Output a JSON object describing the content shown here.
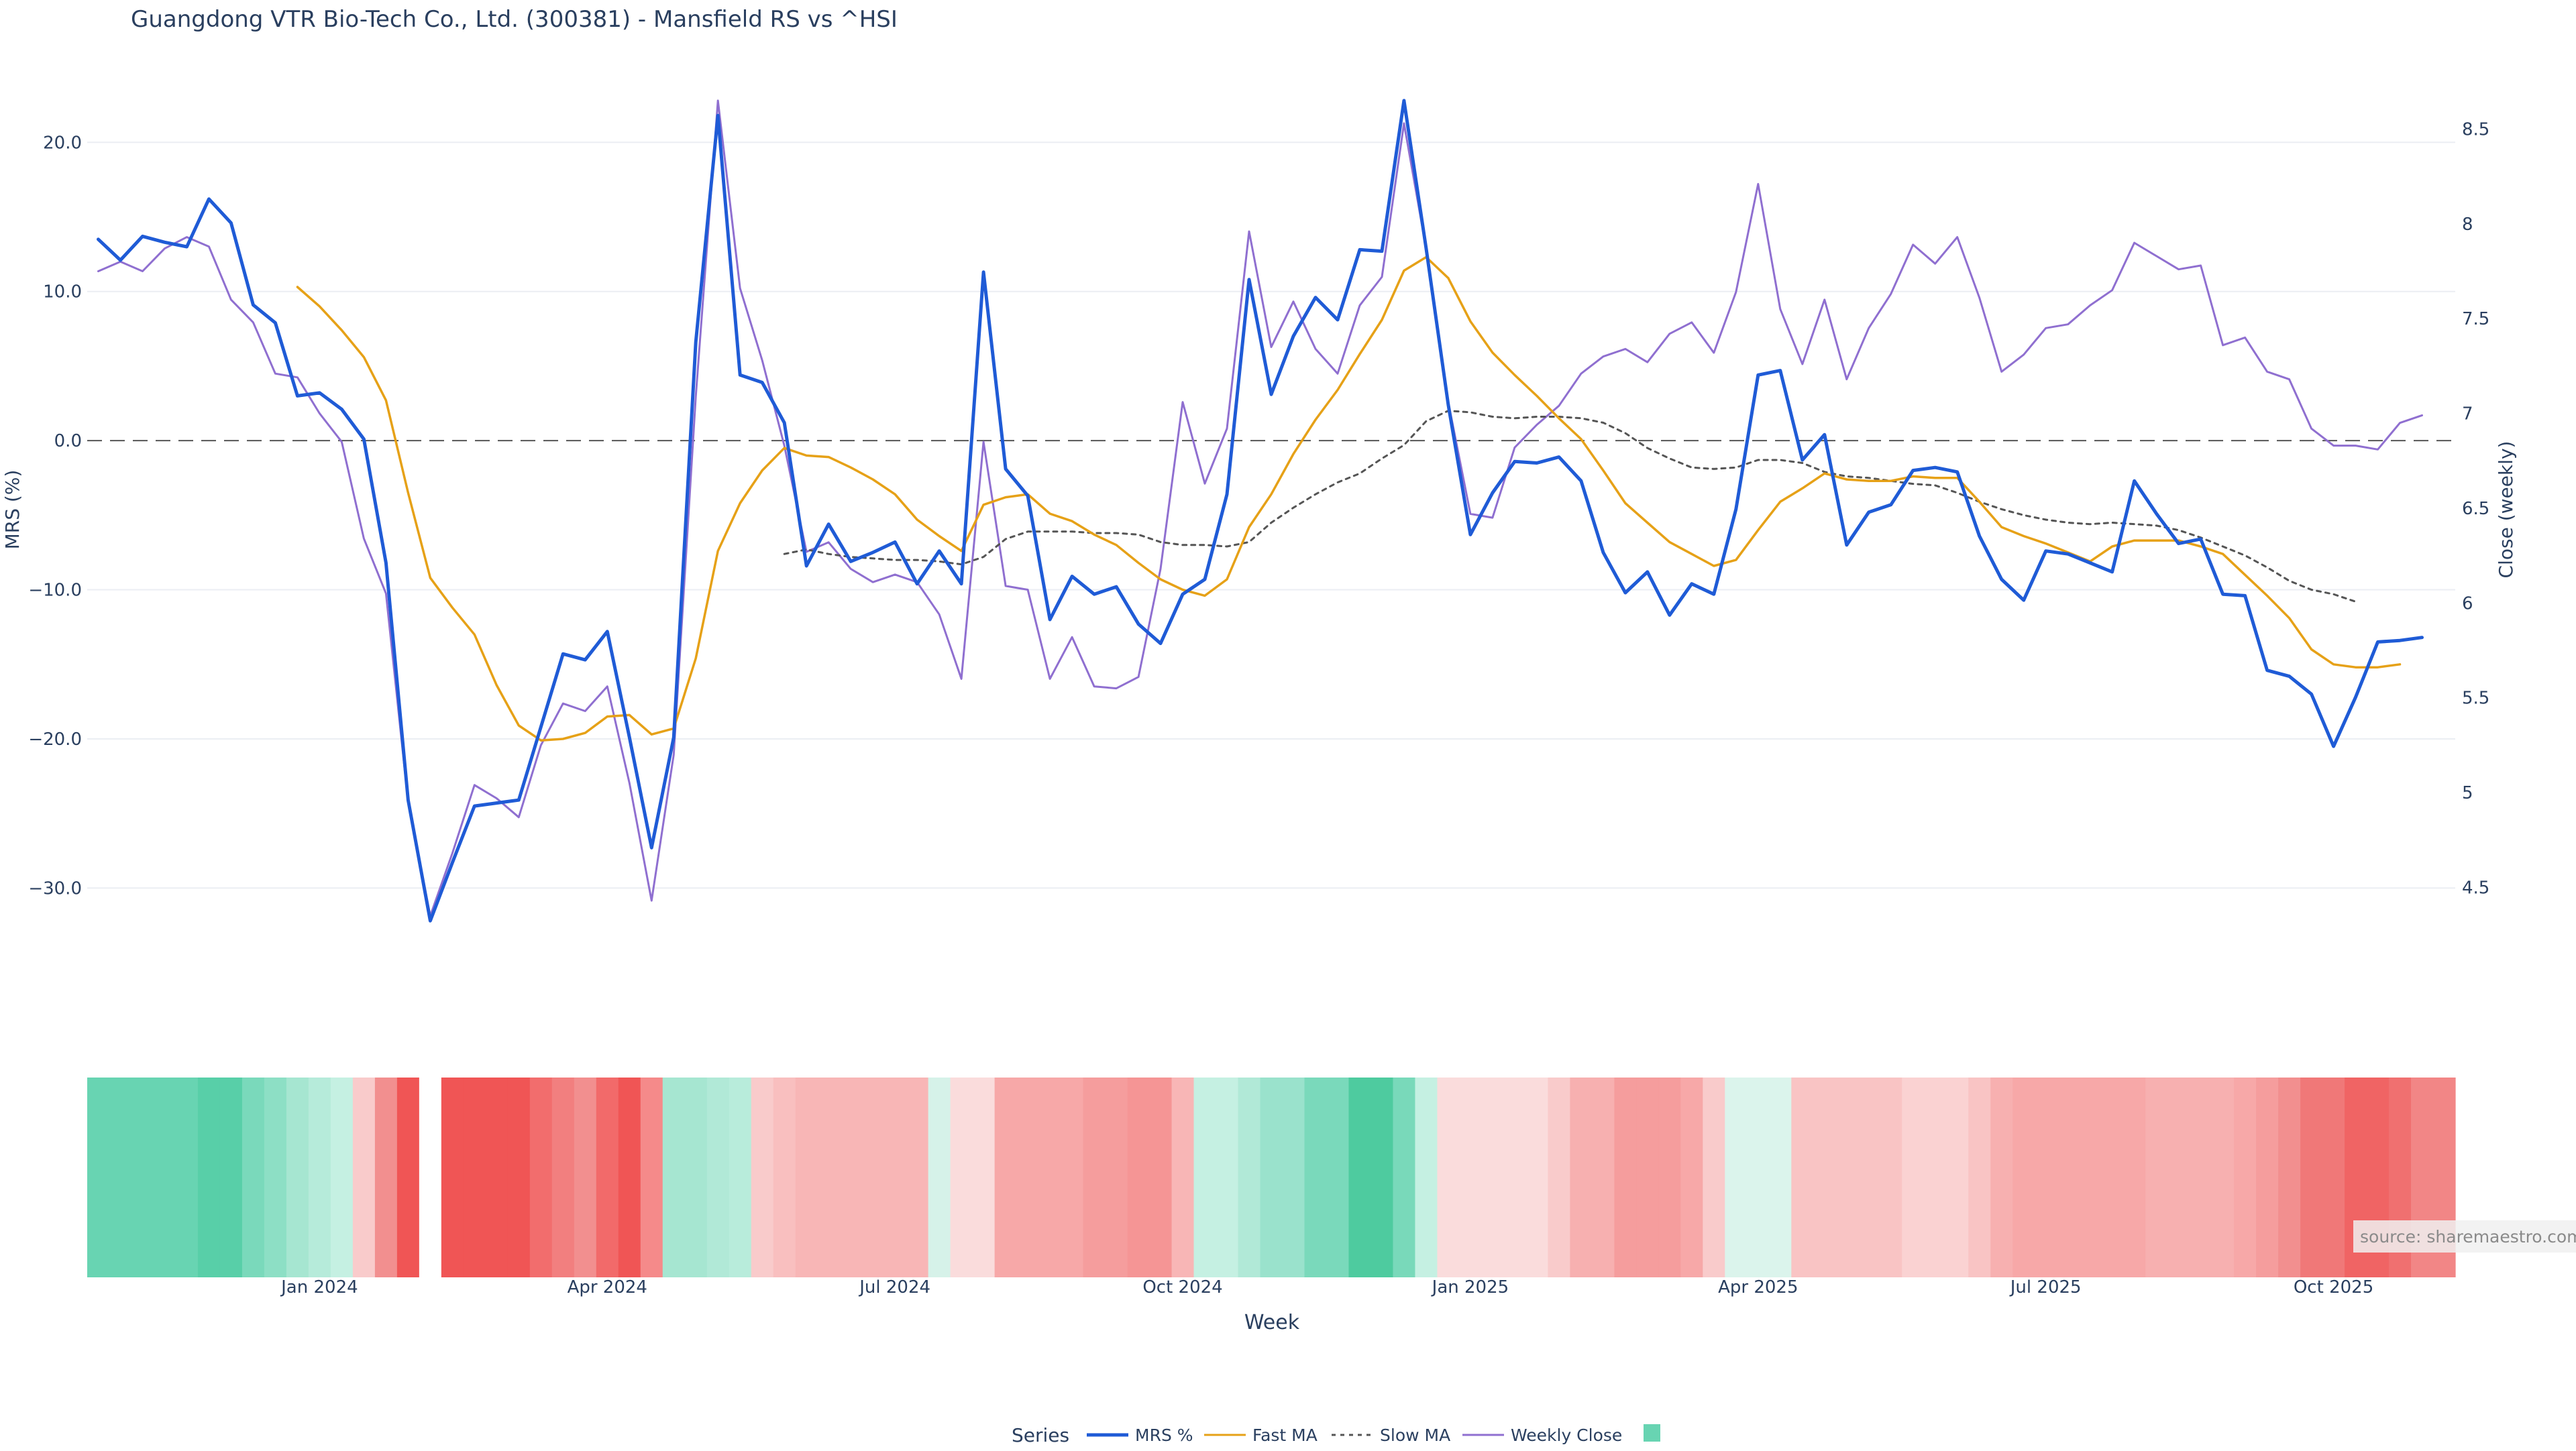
{
  "chart_data": {
    "type": "line",
    "title": "Guangdong VTR Bio-Tech Co., Ltd. (300381) - Mansfield RS vs ^HSI",
    "xlabel": "Week",
    "ylabel_left": "MRS (%)",
    "ylabel_right": "Close (weekly)",
    "ylim_left": [
      -32.5,
      22.8
    ],
    "ylim_right": [
      4.3,
      8.65
    ],
    "yticks_left": [
      20,
      10,
      0,
      -10,
      -20,
      -30
    ],
    "ytick_labels_left": [
      "20.0",
      "10.0",
      "0.0",
      "−10.0",
      "−20.0",
      "−30.0"
    ],
    "yticks_right": [
      8.5,
      8,
      7.5,
      7,
      6.5,
      6,
      5.5,
      5,
      4.5
    ],
    "ytick_labels_right": [
      "8.5",
      "8",
      "7.5",
      "7",
      "6.5",
      "6",
      "5.5",
      "5",
      "4.5"
    ],
    "x_ticks": [
      {
        "week": 10,
        "label": "Jan 2024"
      },
      {
        "week": 23,
        "label": "Apr 2024"
      },
      {
        "week": 36,
        "label": "Jul 2024"
      },
      {
        "week": 49,
        "label": "Oct 2024"
      },
      {
        "week": 62,
        "label": "Jan 2025"
      },
      {
        "week": 75,
        "label": "Apr 2025"
      },
      {
        "week": 88,
        "label": "Jul 2025"
      },
      {
        "week": 101,
        "label": "Oct 2025"
      }
    ],
    "n_weeks": 107,
    "zero_line": 0,
    "series": [
      {
        "name": "MRS %",
        "axis": "left",
        "color": "#1f5bd6",
        "dash": "solid",
        "start_week": 0,
        "values": [
          13.5,
          12.1,
          13.7,
          13.3,
          13.0,
          16.2,
          14.6,
          9.1,
          7.9,
          3.0,
          3.2,
          2.1,
          0.1,
          -8.2,
          -24.1,
          -32.2,
          -28.3,
          -24.5,
          -24.3,
          -24.1,
          -19.2,
          -14.3,
          -14.7,
          -12.8,
          -19.9,
          -27.3,
          -19.9,
          6.6,
          21.8,
          4.4,
          3.9,
          1.2,
          -8.4,
          -5.6,
          -8.1,
          -7.5,
          -6.8,
          -9.6,
          -7.4,
          -9.6,
          11.3,
          -1.9,
          -3.7,
          -12.0,
          -9.1,
          -10.3,
          -9.8,
          -12.3,
          -13.6,
          -10.3,
          -9.3,
          -3.6,
          10.8,
          3.1,
          7.0,
          9.6,
          8.1,
          12.8,
          12.7,
          22.8,
          12.9,
          2.4,
          -6.3,
          -3.5,
          -1.4,
          -1.5,
          -1.1,
          -2.7,
          -7.5,
          -10.2,
          -8.8,
          -11.7,
          -9.6,
          -10.3,
          -4.6,
          4.4,
          4.7,
          -1.3,
          0.4,
          -7.0,
          -4.8,
          -4.3,
          -2.0,
          -1.8,
          -2.1,
          -6.4,
          -9.3,
          -10.7,
          -7.4,
          -7.6,
          -8.2,
          -8.8,
          -2.7,
          -4.9,
          -6.9,
          -6.6,
          -10.3,
          -10.4,
          -15.4,
          -15.8,
          -17.0,
          -20.5,
          -17.2,
          -13.5,
          -13.4,
          -13.2
        ]
      },
      {
        "name": "Fast MA",
        "axis": "left",
        "color": "#e6a117",
        "dash": "solid",
        "start_week": 9,
        "values": [
          10.3,
          9.0,
          7.4,
          5.6,
          2.7,
          -3.5,
          -9.2,
          -11.2,
          -13.0,
          -16.4,
          -19.1,
          -20.1,
          -20.0,
          -19.6,
          -18.5,
          -18.4,
          -19.7,
          -19.3,
          -14.6,
          -7.4,
          -4.2,
          -2.0,
          -0.5,
          -1.0,
          -1.1,
          -1.8,
          -2.6,
          -3.6,
          -5.3,
          -6.4,
          -7.4,
          -4.3,
          -3.8,
          -3.6,
          -4.9,
          -5.4,
          -6.3,
          -7.0,
          -8.2,
          -9.3,
          -10.0,
          -10.4,
          -9.3,
          -5.8,
          -3.6,
          -0.9,
          1.4,
          3.4,
          5.8,
          8.1,
          11.4,
          12.3,
          10.9,
          8.0,
          5.9,
          4.4,
          3.0,
          1.5,
          0.1,
          -2.0,
          -4.2,
          -5.5,
          -6.8,
          -7.6,
          -8.4,
          -8.0,
          -6.0,
          -4.1,
          -3.2,
          -2.2,
          -2.6,
          -2.7,
          -2.7,
          -2.4,
          -2.5,
          -2.5,
          -4.1,
          -5.8,
          -6.4,
          -6.9,
          -7.5,
          -8.1,
          -7.1,
          -6.7,
          -6.7,
          -6.7,
          -7.1,
          -7.6,
          -9.0,
          -10.4,
          -11.9,
          -14.0,
          -15.0,
          -15.2,
          -15.2,
          -15.0
        ]
      },
      {
        "name": "Slow MA",
        "axis": "left",
        "color": "#555555",
        "dash": "dotted",
        "start_week": 31,
        "values": [
          -7.6,
          -7.3,
          -7.6,
          -7.8,
          -7.9,
          -8.0,
          -8.0,
          -8.1,
          -8.3,
          -7.8,
          -6.6,
          -6.1,
          -6.1,
          -6.1,
          -6.2,
          -6.2,
          -6.3,
          -6.8,
          -7.0,
          -7.0,
          -7.1,
          -6.8,
          -5.5,
          -4.5,
          -3.6,
          -2.8,
          -2.2,
          -1.2,
          -0.3,
          1.3,
          2.0,
          1.9,
          1.6,
          1.5,
          1.6,
          1.6,
          1.5,
          1.2,
          0.5,
          -0.5,
          -1.2,
          -1.8,
          -1.9,
          -1.8,
          -1.3,
          -1.3,
          -1.5,
          -2.1,
          -2.4,
          -2.5,
          -2.7,
          -2.9,
          -3.0,
          -3.5,
          -4.1,
          -4.6,
          -5.0,
          -5.3,
          -5.5,
          -5.6,
          -5.5,
          -5.6,
          -5.7,
          -6.0,
          -6.5,
          -7.1,
          -7.7,
          -8.5,
          -9.4,
          -10.0,
          -10.3,
          -10.8
        ]
      },
      {
        "name": "Weekly Close",
        "axis": "right",
        "color": "#8f6fd0",
        "dash": "solid",
        "start_week": 0,
        "values": [
          7.75,
          7.8,
          7.75,
          7.87,
          7.93,
          7.88,
          7.6,
          7.48,
          7.21,
          7.19,
          7.0,
          6.85,
          6.34,
          6.05,
          4.95,
          4.35,
          4.68,
          5.04,
          4.97,
          4.87,
          5.25,
          5.47,
          5.43,
          5.56,
          5.05,
          4.43,
          5.2,
          7.09,
          8.65,
          7.66,
          7.28,
          6.83,
          6.27,
          6.32,
          6.18,
          6.11,
          6.15,
          6.11,
          5.94,
          5.6,
          6.85,
          6.09,
          6.07,
          5.6,
          5.82,
          5.56,
          5.55,
          5.61,
          6.18,
          7.06,
          6.63,
          6.92,
          7.96,
          7.35,
          7.59,
          7.34,
          7.21,
          7.57,
          7.72,
          8.53,
          7.87,
          7.06,
          6.47,
          6.45,
          6.82,
          6.94,
          7.04,
          7.21,
          7.3,
          7.34,
          7.27,
          7.42,
          7.48,
          7.32,
          7.64,
          8.21,
          7.55,
          7.26,
          7.6,
          7.18,
          7.45,
          7.63,
          7.89,
          7.79,
          7.93,
          7.61,
          7.22,
          7.31,
          7.45,
          7.47,
          7.57,
          7.65,
          7.9,
          7.83,
          7.76,
          7.78,
          7.36,
          7.4,
          7.22,
          7.18,
          6.92,
          6.83,
          6.83,
          6.81,
          6.95,
          6.99
        ]
      }
    ],
    "heatmap": {
      "name": "MRS heat strip",
      "gap_week": 16,
      "colors": [
        "#68d4b2",
        "#68d4b2",
        "#68d4b2",
        "#68d4b2",
        "#68d4b2",
        "#58cfa8",
        "#58cfa8",
        "#7ad9bb",
        "#8ddfc5",
        "#a6e6d1",
        "#b6ebda",
        "#c5f0e2",
        "#f9cbcb",
        "#f28f8f",
        "#f05555",
        "#ffffff",
        "#f05555",
        "#f05555",
        "#f05555",
        "#f05555",
        "#f26d6d",
        "#f27f7f",
        "#f28f8f",
        "#f26a6a",
        "#f05555",
        "#f58a8a",
        "#a6e6d1",
        "#a6e6d1",
        "#b1e9d7",
        "#b8ecdb",
        "#f9cbcb",
        "#f9bfbf",
        "#f8b6b6",
        "#f8b6b6",
        "#f8b6b6",
        "#f8b6b6",
        "#f8b6b6",
        "#f8b6b6",
        "#d6f2e9",
        "#fadcdc",
        "#fadcdc",
        "#f7a8a8",
        "#f7a8a8",
        "#f7a8a8",
        "#f7a8a8",
        "#f59d9d",
        "#f59d9d",
        "#f59595",
        "#f59595",
        "#f8b6b6",
        "#c5f0e2",
        "#c5f0e2",
        "#b1e9d7",
        "#9ae2cc",
        "#9ae2cc",
        "#7ad9bb",
        "#7ad9bb",
        "#4ecb9f",
        "#4ecb9f",
        "#79d9ba",
        "#c5f0e2",
        "#fadcdc",
        "#fadcdc",
        "#fadcdc",
        "#fadcdc",
        "#fadcdc",
        "#f9cbcb",
        "#f7b0b0",
        "#f7b0b0",
        "#f59d9d",
        "#f59d9d",
        "#f59d9d",
        "#f7a8a8",
        "#f9cbcb",
        "#dbf4ec",
        "#dbf4ec",
        "#dbf4ec",
        "#f9c4c4",
        "#f9c4c4",
        "#f9c4c4",
        "#f9c4c4",
        "#f9c4c4",
        "#fad2d2",
        "#fad2d2",
        "#fad2d2",
        "#f9c4c4",
        "#f7b0b0",
        "#f7a8a8",
        "#f7a8a8",
        "#f7a8a8",
        "#f7a8a8",
        "#f7a8a8",
        "#f7a8a8",
        "#f7b0b0",
        "#f7b0b0",
        "#f7b0b0",
        "#f7b0b0",
        "#f7a8a8",
        "#f59d9d",
        "#f28f8f",
        "#f07878",
        "#f07878",
        "#f06464",
        "#f06464",
        "#f07070",
        "#f28686",
        "#f28686"
      ]
    },
    "legend": {
      "title": "Series",
      "items": [
        "MRS %",
        "Fast MA",
        "Slow MA",
        "Weekly Close"
      ],
      "heat_swatch_color": "#68d4b2",
      "position": "bottom-center"
    },
    "source_label": "source: sharemaestro.com"
  }
}
